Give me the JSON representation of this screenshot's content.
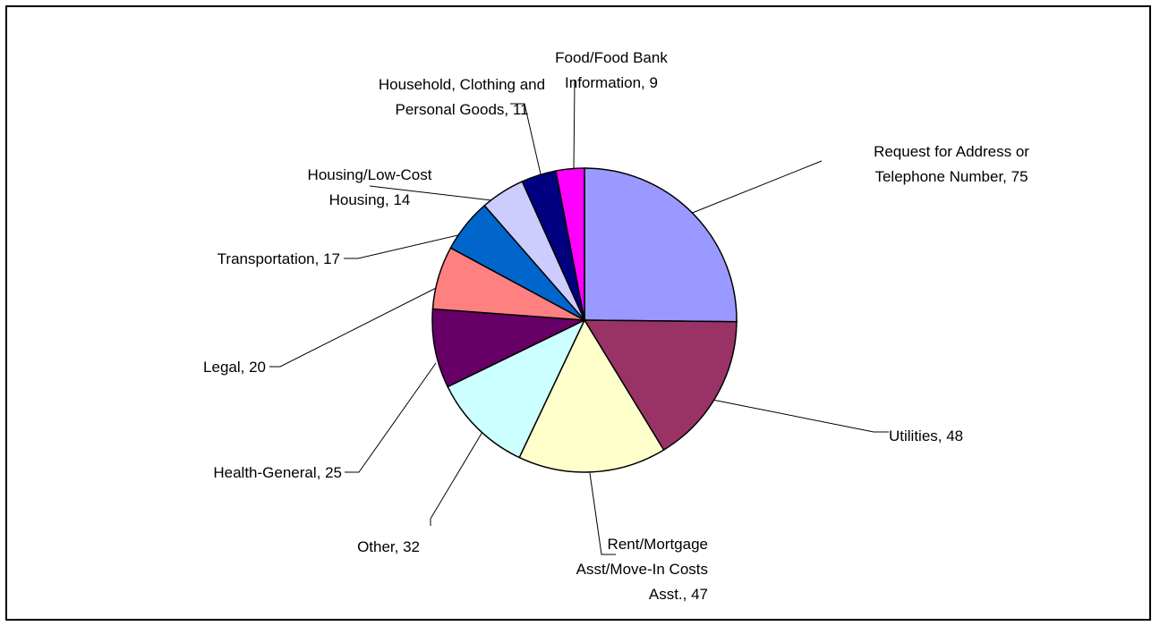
{
  "chart_data": {
    "type": "pie",
    "title": "",
    "legend": "none",
    "start_angle_deg": 90,
    "direction": "clockwise",
    "slices": [
      {
        "label": "Request for Address or Telephone Number",
        "value": 75,
        "color": "#9999FF",
        "label_lines": [
          "Request for Address or",
          "Telephone Number, 75"
        ]
      },
      {
        "label": "Utilities",
        "value": 48,
        "color": "#993366",
        "label_lines": [
          "Utilities, 48"
        ]
      },
      {
        "label": "Rent/Mortgage Asst/Move-In Costs Asst.",
        "value": 47,
        "color": "#FFFFCC",
        "label_lines": [
          "Rent/Mortgage",
          "Asst/Move-In Costs",
          "Asst., 47"
        ]
      },
      {
        "label": "Other",
        "value": 32,
        "color": "#CCFFFF",
        "label_lines": [
          "Other, 32"
        ]
      },
      {
        "label": "Health-General",
        "value": 25,
        "color": "#660066",
        "label_lines": [
          "Health-General, 25"
        ]
      },
      {
        "label": "Legal",
        "value": 20,
        "color": "#FF8080",
        "label_lines": [
          "Legal, 20"
        ]
      },
      {
        "label": "Transportation",
        "value": 17,
        "color": "#0066CC",
        "label_lines": [
          "Transportation, 17"
        ]
      },
      {
        "label": "Housing/Low-Cost Housing",
        "value": 14,
        "color": "#CCCCFF",
        "label_lines": [
          "Housing/Low-Cost",
          "Housing, 14"
        ]
      },
      {
        "label": "Household, Clothing and Personal Goods",
        "value": 11,
        "color": "#000080",
        "label_lines": [
          "Household, Clothing and",
          "Personal Goods, 11"
        ]
      },
      {
        "label": "Food/Food Bank Information",
        "value": 9,
        "color": "#FF00FF",
        "label_lines": [
          "Food/Food Bank",
          "Information, 9"
        ]
      }
    ]
  }
}
